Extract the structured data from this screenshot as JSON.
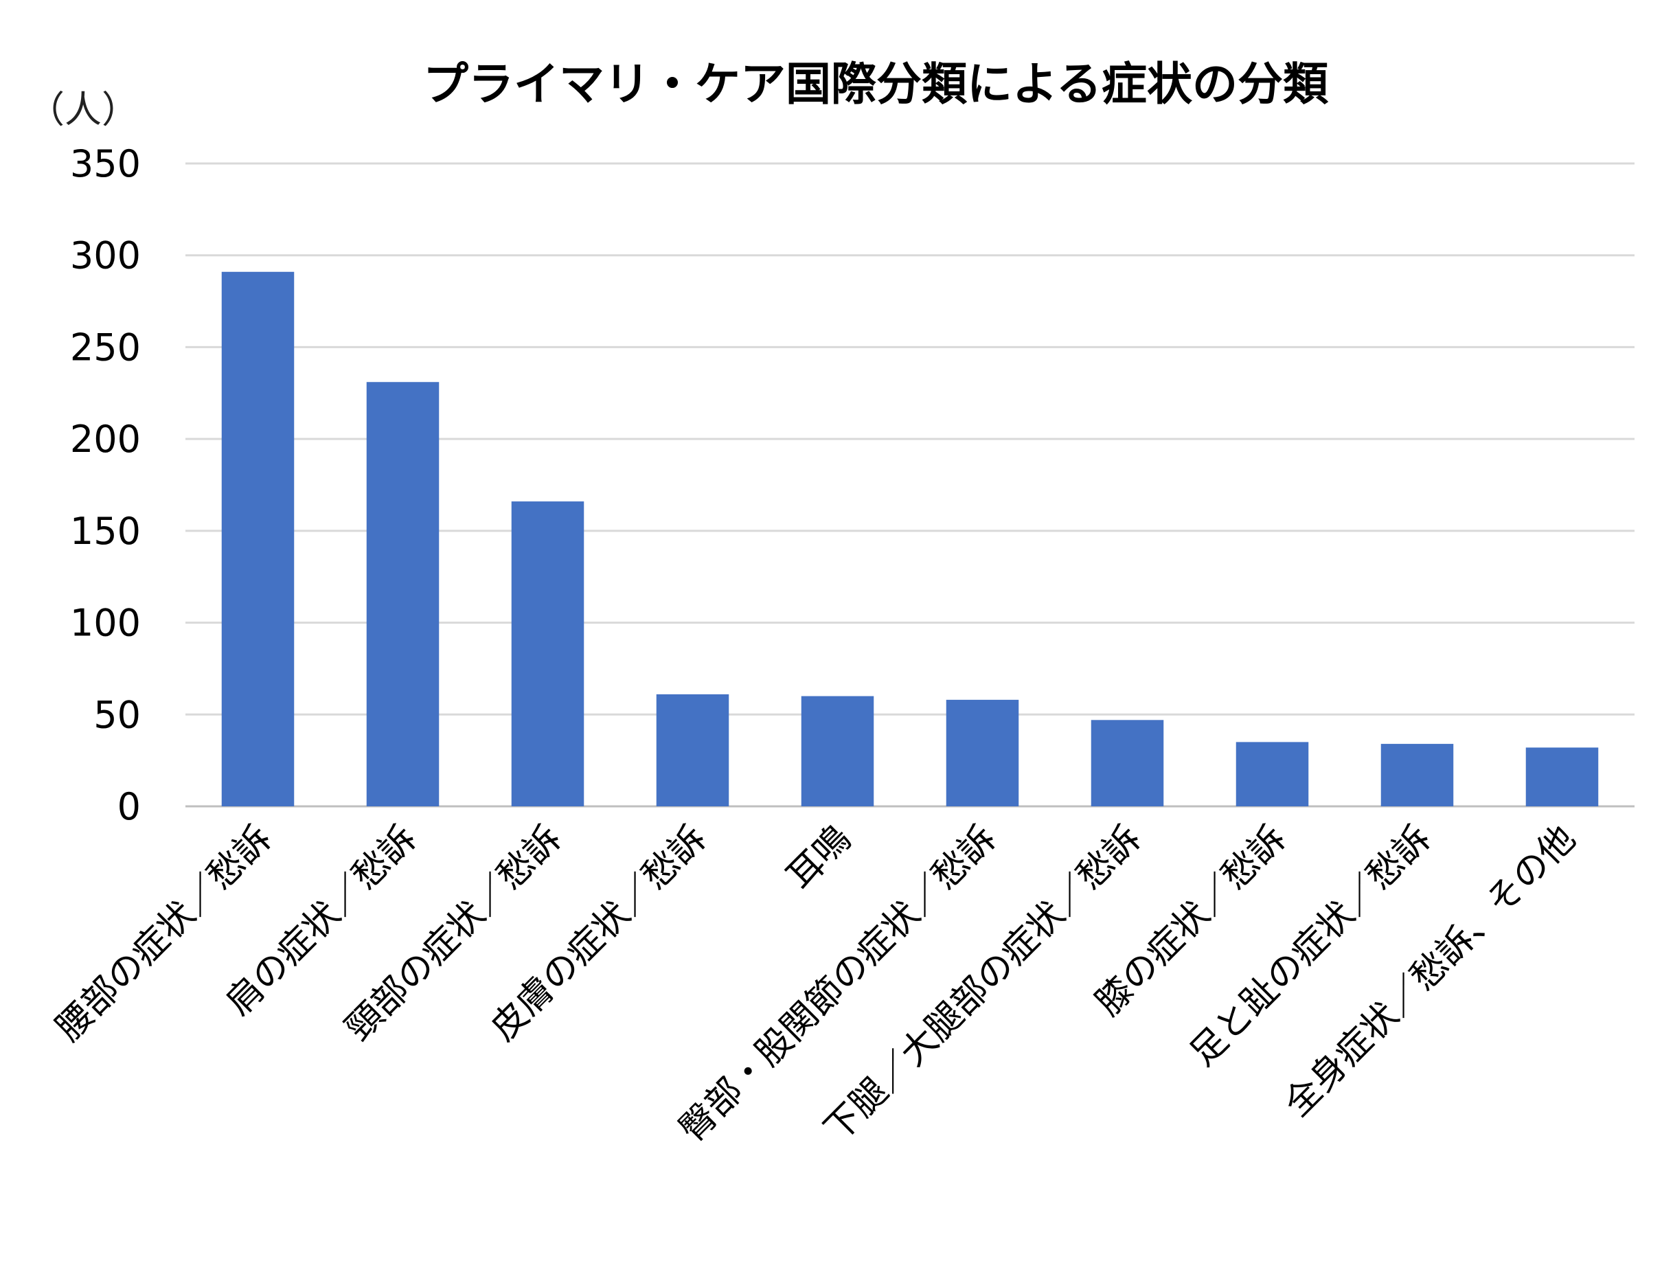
{
  "chart_data": {
    "type": "bar",
    "title": "プライマリ・ケア国際分類による症状の分類",
    "ylabel": "（人）",
    "xlabel": "",
    "ylim": [
      0,
      350
    ],
    "yticks": [
      "0",
      "50",
      "100",
      "150",
      "200",
      "250",
      "300",
      "350"
    ],
    "grid": true,
    "color": "#4472C4",
    "categories": [
      "腰部の症状／愁訴",
      "肩の症状／愁訴",
      "頸部の症状／愁訴",
      "皮膚の症状／愁訴",
      "耳鳴",
      "臀部・股関節の症状／愁訴",
      "下腿／大腿部の症状／愁訴",
      "膝の症状／愁訴",
      "足と趾の症状／愁訴",
      "全身症状／愁訴、その他"
    ],
    "values": [
      291,
      231,
      166,
      61,
      60,
      58,
      47,
      35,
      34,
      32
    ]
  }
}
